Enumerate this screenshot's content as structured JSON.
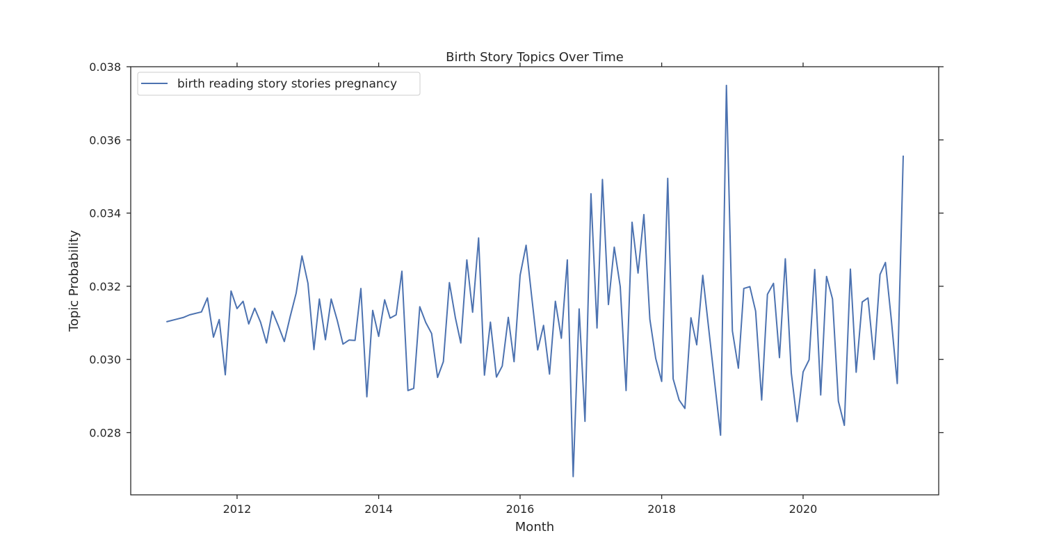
{
  "chart_data": {
    "type": "line",
    "title": "Birth Story Topics Over Time",
    "xlabel": "Month",
    "ylabel": "Topic Probability",
    "xlim": [
      "2010-07-01",
      "2021-12-01"
    ],
    "ylim": [
      0.0263,
      0.038
    ],
    "x_ticks": [
      "2012",
      "2014",
      "2016",
      "2018",
      "2020"
    ],
    "y_ticks": [
      "0.028",
      "0.030",
      "0.032",
      "0.034",
      "0.036",
      "0.038"
    ],
    "grid": false,
    "legend_position": "top-left",
    "line_color": "#4c72b0",
    "series": [
      {
        "name": "birth reading story stories pregnancy",
        "x": [
          "2011-01",
          "2011-04",
          "2011-05",
          "2011-07",
          "2011-08",
          "2011-09",
          "2011-10",
          "2011-11",
          "2011-12",
          "2012-01",
          "2012-02",
          "2012-03",
          "2012-04",
          "2012-05",
          "2012-06",
          "2012-07",
          "2012-08",
          "2012-09",
          "2012-10",
          "2012-11",
          "2012-12",
          "2013-01",
          "2013-02",
          "2013-03",
          "2013-04",
          "2013-05",
          "2013-06",
          "2013-07",
          "2013-08",
          "2013-09",
          "2013-10",
          "2013-11",
          "2013-12",
          "2014-01",
          "2014-02",
          "2014-03",
          "2014-04",
          "2014-05",
          "2014-06",
          "2014-07",
          "2014-08",
          "2014-09",
          "2014-10",
          "2014-11",
          "2014-12",
          "2015-01",
          "2015-02",
          "2015-03",
          "2015-04",
          "2015-05",
          "2015-06",
          "2015-07",
          "2015-08",
          "2015-09",
          "2015-10",
          "2015-11",
          "2015-12",
          "2016-01",
          "2016-02",
          "2016-03",
          "2016-04",
          "2016-05",
          "2016-06",
          "2016-07",
          "2016-08",
          "2016-09",
          "2016-10",
          "2016-11",
          "2016-12",
          "2017-01",
          "2017-02",
          "2017-03",
          "2017-04",
          "2017-05",
          "2017-06",
          "2017-07",
          "2017-08",
          "2017-09",
          "2017-10",
          "2017-11",
          "2017-12",
          "2018-01",
          "2018-02",
          "2018-03",
          "2018-04",
          "2018-05",
          "2018-06",
          "2018-07",
          "2018-08",
          "2018-09",
          "2018-10",
          "2018-11",
          "2018-12",
          "2019-01",
          "2019-02",
          "2019-03",
          "2019-04",
          "2019-05",
          "2019-06",
          "2019-07",
          "2019-08",
          "2019-09",
          "2019-10",
          "2019-11",
          "2019-12",
          "2020-01",
          "2020-02",
          "2020-03",
          "2020-04",
          "2020-05",
          "2020-06",
          "2020-07",
          "2020-08",
          "2020-09",
          "2020-10",
          "2020-11",
          "2020-12",
          "2021-01",
          "2021-02",
          "2021-03",
          "2021-04",
          "2021-05",
          "2021-06"
        ],
        "values": [
          0.03103,
          0.03115,
          0.03122,
          0.0313,
          0.03168,
          0.03061,
          0.03109,
          0.02958,
          0.03187,
          0.03139,
          0.03159,
          0.03097,
          0.0314,
          0.03102,
          0.03045,
          0.03132,
          0.03092,
          0.03049,
          0.03117,
          0.03181,
          0.03283,
          0.03208,
          0.03027,
          0.03165,
          0.03054,
          0.03165,
          0.03107,
          0.03042,
          0.03053,
          0.03052,
          0.03194,
          0.02898,
          0.03134,
          0.03063,
          0.03163,
          0.03113,
          0.03122,
          0.03241,
          0.02915,
          0.02921,
          0.03144,
          0.03101,
          0.03071,
          0.02951,
          0.02994,
          0.0321,
          0.03114,
          0.03045,
          0.03272,
          0.03129,
          0.03332,
          0.02957,
          0.03102,
          0.02952,
          0.02982,
          0.03115,
          0.02994,
          0.0323,
          0.03312,
          0.03171,
          0.03026,
          0.03093,
          0.0296,
          0.03159,
          0.03058,
          0.03272,
          0.0268,
          0.03138,
          0.02831,
          0.03453,
          0.03086,
          0.03492,
          0.0315,
          0.03307,
          0.03199,
          0.02915,
          0.03375,
          0.03236,
          0.03396,
          0.0311,
          0.03003,
          0.0294,
          0.03495,
          0.02947,
          0.02889,
          0.02866,
          0.03114,
          0.0304,
          0.0323,
          0.03083,
          0.02939,
          0.02793,
          0.03749,
          0.03078,
          0.02976,
          0.03194,
          0.03199,
          0.03132,
          0.02889,
          0.03178,
          0.03208,
          0.03005,
          0.03275,
          0.02963,
          0.0283,
          0.02966,
          0.02999,
          0.03246,
          0.02903,
          0.03227,
          0.03165,
          0.02886,
          0.0282,
          0.03247,
          0.02965,
          0.03157,
          0.03168,
          0.03,
          0.03232,
          0.03265,
          0.03106,
          0.02934,
          0.03557
        ]
      }
    ]
  }
}
